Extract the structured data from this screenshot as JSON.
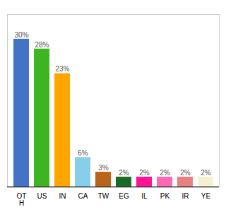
{
  "chart_data": {
    "type": "bar",
    "categories": [
      "OT\nH",
      "US",
      "IN",
      "CA",
      "TW",
      "EG",
      "IL",
      "PK",
      "IR",
      "YE"
    ],
    "values": [
      30,
      28,
      23,
      6,
      3,
      2,
      2,
      2,
      2,
      2
    ],
    "value_labels": [
      "30%",
      "28%",
      "23%",
      "6%",
      "3%",
      "2%",
      "2%",
      "2%",
      "2%",
      "2%"
    ],
    "colors": [
      "#4472c4",
      "#3cb521",
      "#ffa500",
      "#87ceeb",
      "#b8641a",
      "#1a6b2a",
      "#ff1493",
      "#ff69b4",
      "#e88080",
      "#f5f0d0"
    ],
    "ylim": [
      0,
      35
    ],
    "data_labels": true,
    "tick_labels": "x",
    "grid": false
  }
}
